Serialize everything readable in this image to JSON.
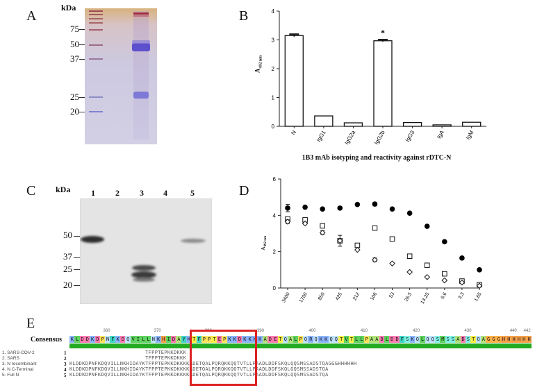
{
  "panel_a": {
    "letter": "A",
    "kda_label": "kDa",
    "mw_markers": [
      "75",
      "50",
      "37",
      "25",
      "20"
    ]
  },
  "panel_b": {
    "letter": "B",
    "ylabel": "A",
    "ylabel_sub": "492 nm",
    "caption": "1B3 mAb isotyping and reactivity against rDTC-N",
    "significance": "*"
  },
  "panel_c": {
    "letter": "C",
    "kda_label": "kDa",
    "lanes": [
      "1",
      "2",
      "3",
      "4",
      "5"
    ],
    "mw_markers": [
      "50",
      "37",
      "25",
      "20"
    ]
  },
  "panel_d": {
    "letter": "D",
    "ylabel": "A",
    "ylabel_sub": "492 nm"
  },
  "panel_e": {
    "letter": "E",
    "consensus_label": "Consensus",
    "ruler_labels": [
      "360",
      "370",
      "380",
      "390",
      "400",
      "410",
      "420",
      "430",
      "440",
      "442"
    ],
    "consensus_sequence": "KLDDKDPNFKDQVILLNKHIDAYKTFPPTEPKKDKKKKADETQALPQRQKKQQTVTLLPAADLDDFSKQLQQSMSSADSTQAGGGHHHHHH",
    "row_numbers": [
      "1",
      "2",
      "3",
      "4",
      "5"
    ],
    "rows": [
      "                        TFPPTEPKKDKKK",
      "                        TFPPTEPKKDKKK",
      "KLDDKDPNFKDQVILLNKHIDAYKTFPPTEPKKDKKKKADETQALPQRQKKQQTVTLLPAADLDDFSKQLQQSMSSADSTQAGGGHHHHHH",
      "KLDDKDPNFKDQVILLNKHIDAYKTFPPTEPKKDKKKKADETQALPQRQKKQQTVTLLPAADLDDFSKQLQQSMSSADSTQA",
      "KLDDKDPNFKDQVILLNKHIDAYKTFPPTEPKKDKKKKADETQALPQRQKKQQTVTLLPAADLDDFSKQLQQSMSSADSTQA"
    ],
    "legend": [
      "1. SARS-COV-2",
      "2. SARS",
      "3. N recombinant",
      "4. N C-Terminal",
      "5. Full N"
    ]
  },
  "chart_data": [
    {
      "type": "bar",
      "panel": "B",
      "categories": [
        "N",
        "IgG1",
        "IgG2a",
        "IgG2b",
        "IgG3",
        "IgA",
        "IgM"
      ],
      "values": [
        3.15,
        0.36,
        0.12,
        2.97,
        0.13,
        0.05,
        0.14
      ],
      "errors": [
        0.05,
        0,
        0,
        0.04,
        0,
        0,
        0
      ],
      "ylim": [
        0,
        4
      ],
      "yticks": [
        0,
        1,
        2,
        3,
        4
      ],
      "title": "",
      "xlabel": "1B3 mAb isotyping and reactivity against rDTC-N",
      "ylabel": "A492 nm"
    },
    {
      "type": "scatter",
      "panel": "D",
      "categories": [
        "3400",
        "1700",
        "850",
        "425",
        "212",
        "106",
        "53",
        "26.5",
        "13.25",
        "6.6",
        "3.3",
        "1.65"
      ],
      "series": [
        {
          "marker": "circle-filled",
          "values": [
            4.4,
            4.45,
            4.35,
            4.4,
            4.6,
            4.62,
            4.35,
            4.12,
            3.4,
            2.55,
            1.65,
            1.0
          ],
          "errors": [
            0.2,
            0,
            0,
            0,
            0,
            0.1,
            0,
            0,
            0,
            0,
            0,
            0
          ]
        },
        {
          "marker": "square-open",
          "values": [
            3.8,
            3.75,
            3.42,
            2.6,
            2.35,
            3.3,
            2.7,
            1.75,
            1.25,
            0.78,
            0.38,
            0.18
          ],
          "errors": [
            0.1,
            0,
            0,
            0.1,
            0,
            0,
            0,
            0,
            0,
            0,
            0,
            0
          ]
        },
        {
          "marker": "diamond-open",
          "values": [
            3.65,
            3.55,
            3.05,
            2.6,
            2.1,
            1.55,
            1.35,
            0.88,
            0.6,
            0.42,
            0.3,
            0.12
          ],
          "errors": [
            0.1,
            0,
            0.1,
            0.3,
            0,
            0.1,
            0,
            0,
            0,
            0,
            0,
            0
          ]
        }
      ],
      "ylim": [
        0,
        6
      ],
      "yticks": [
        0,
        2,
        4,
        6
      ],
      "title": "",
      "xlabel": "",
      "ylabel": "A492 nm"
    }
  ],
  "colors": {
    "gel_a_bg": "#cfcbe0",
    "gel_a_top": "#d9b07a",
    "band_blue": "#5a4fc8",
    "ladder_red": "#a83a4a",
    "alignment_box": "#dd2222",
    "consensus_bar": "#22aa22"
  }
}
